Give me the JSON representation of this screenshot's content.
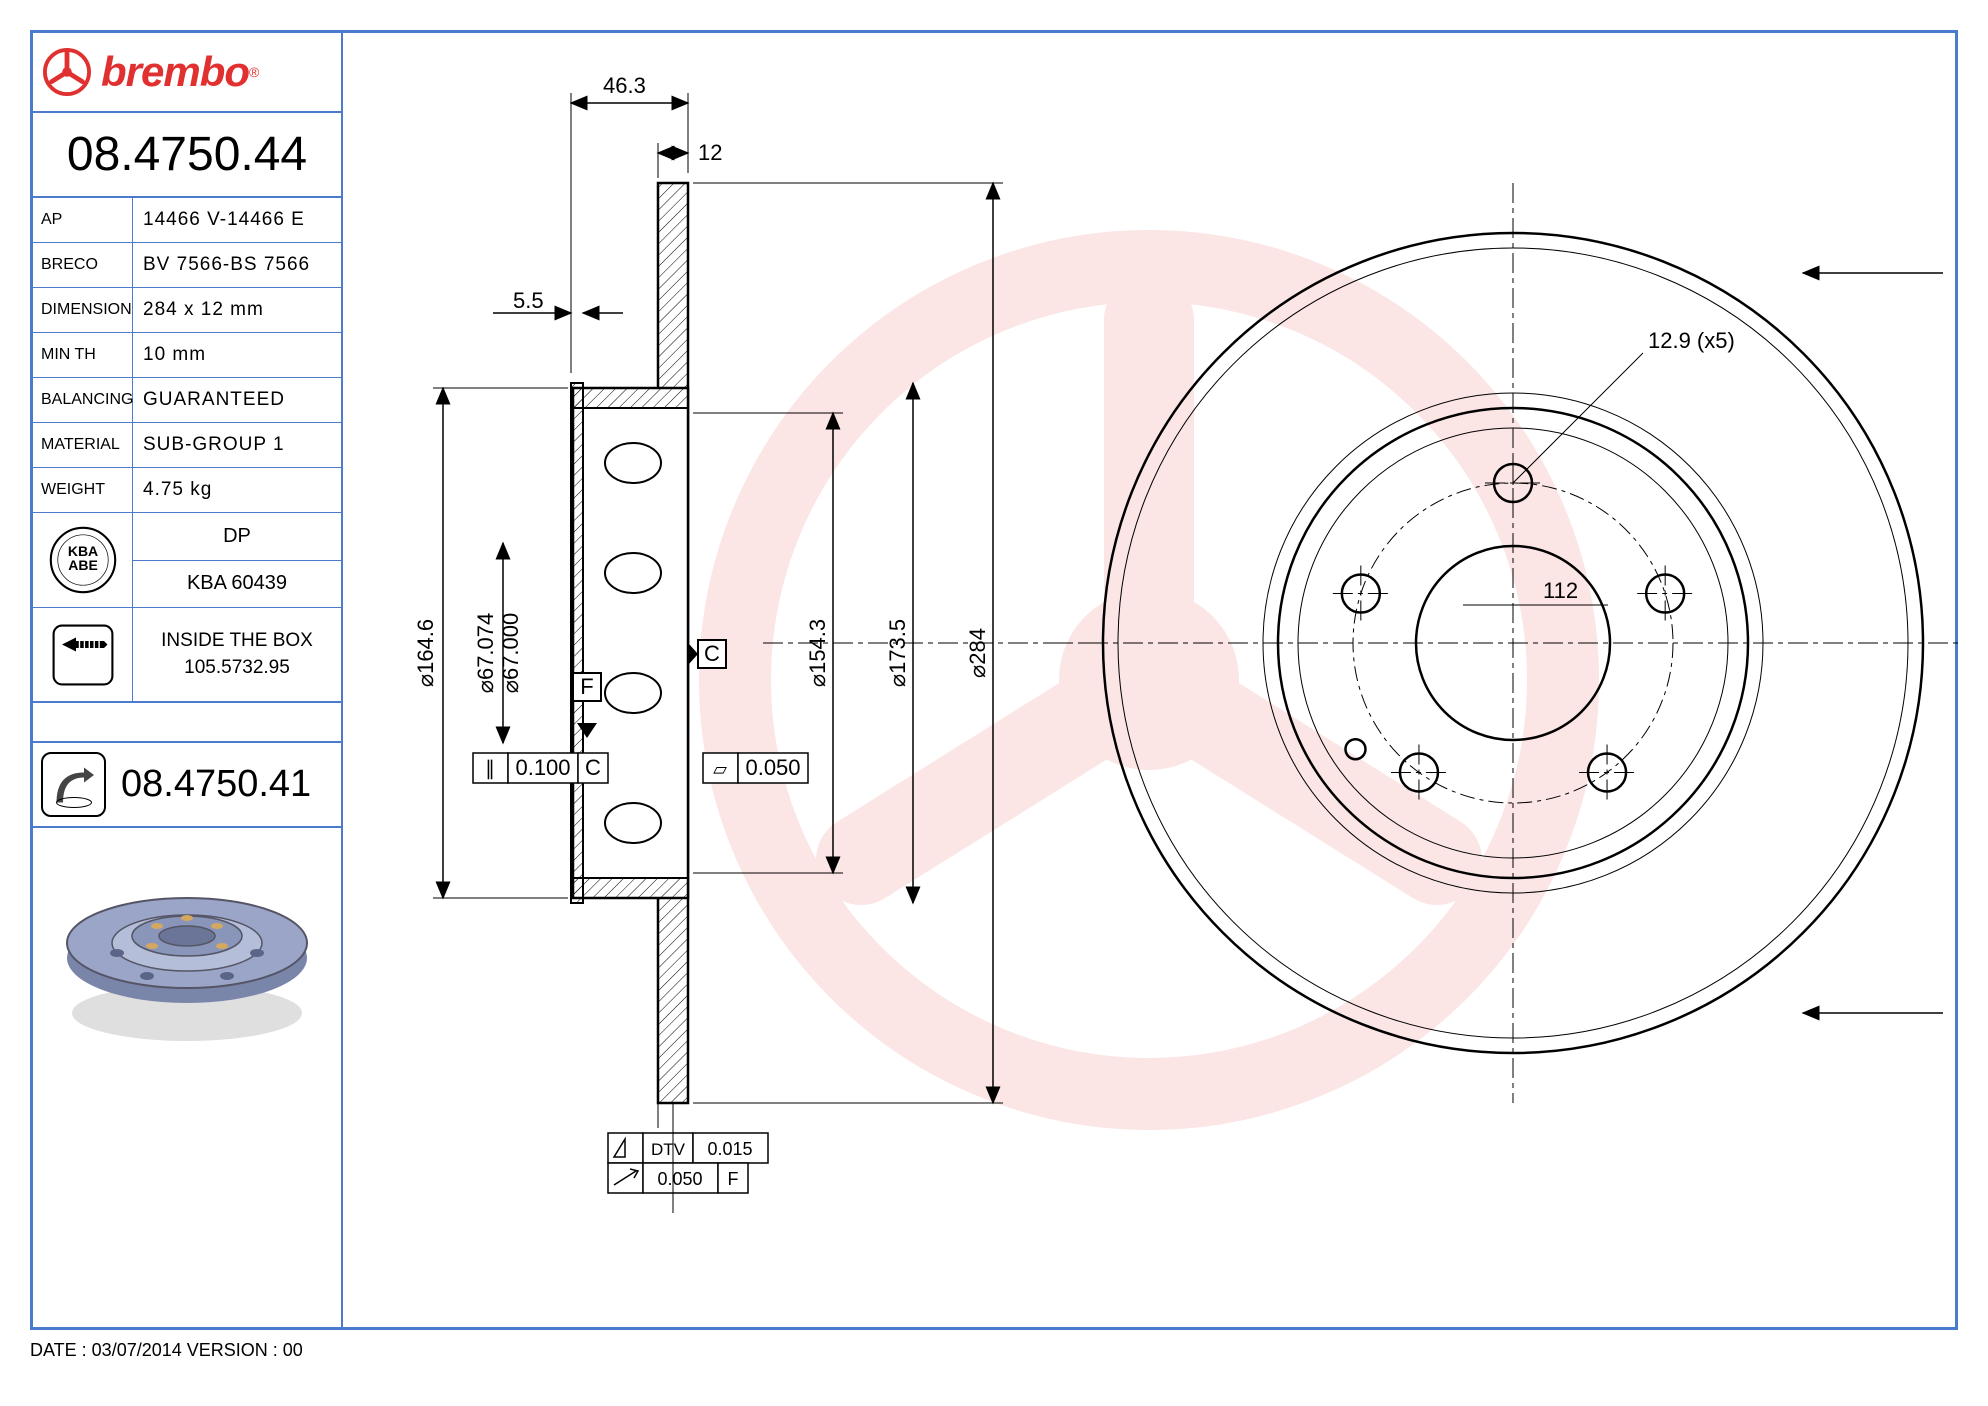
{
  "brand": "brembo",
  "part_number": "08.4750.44",
  "specs": [
    {
      "label": "AP",
      "value": "14466 V-14466 E"
    },
    {
      "label": "BRECO",
      "value": "BV 7566-BS 7566"
    },
    {
      "label": "DIMENSION",
      "value": "284 x 12 mm"
    },
    {
      "label": "MIN TH",
      "value": "10 mm"
    },
    {
      "label": "BALANCING",
      "value": "GUARANTEED"
    },
    {
      "label": "MATERIAL",
      "value": "SUB-GROUP 1"
    },
    {
      "label": "WEIGHT",
      "value": "4.75 kg"
    }
  ],
  "kba": {
    "top": "DP",
    "bottom": "KBA 60439",
    "badge_text1": "KBA",
    "badge_text2": "ABE"
  },
  "inside_box": {
    "line1": "INSIDE THE BOX",
    "line2": "105.5732.95"
  },
  "alt_part": "08.4750.41",
  "footer": "DATE : 03/07/2014 VERSION : 00",
  "drawing": {
    "cross_section": {
      "dim_46_3": "46.3",
      "dim_12": "12",
      "dim_5_5": "5.5",
      "dia_164_6": "⌀164.6",
      "dia_67_074": "⌀67.074",
      "dia_67_000": "⌀67.000",
      "dia_154_3": "⌀154.3",
      "dia_173_5": "⌀173.5",
      "dia_284": "⌀284",
      "datum_F": "F",
      "datum_C": "C",
      "tol_0_100_C": "0.100",
      "tol_0_050": "0.050",
      "dtv_label": "DTV",
      "dtv_val": "0.015",
      "runout_val": "0.050",
      "runout_ref": "F"
    },
    "front_view": {
      "hole_spec": "12.9 (x5)",
      "pcd": "112"
    },
    "colors": {
      "frame": "#4a7bcc",
      "brand": "#e03030",
      "watermark": "#e03030",
      "render_disc": "#9aa5c8",
      "render_shadow": "#c0c0c0"
    }
  }
}
